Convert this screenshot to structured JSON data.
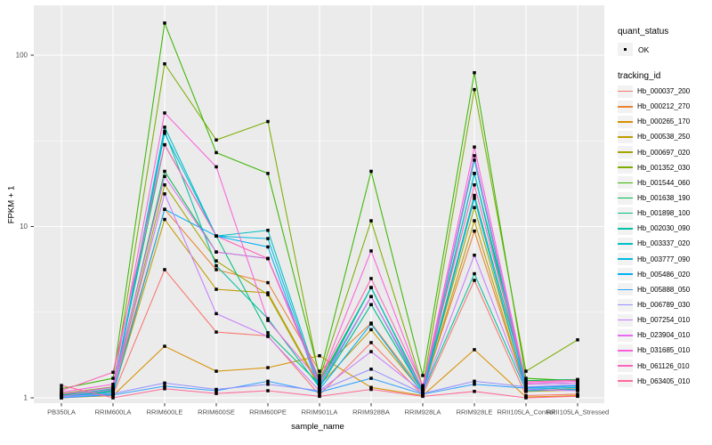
{
  "figure": {
    "background": "#FFFFFF",
    "panel_background": "#EBEBEB",
    "grid_color": "#FFFFFF",
    "tick_label_color": "#4D4D4D",
    "tick_mark_color": "#333333",
    "point_color": "#000000"
  },
  "chart_data": {
    "type": "line",
    "title": "",
    "xlabel": "sample_name",
    "ylabel": "FPKM + 1",
    "y_scale": "log10",
    "y_ticks": [
      1,
      10,
      100
    ],
    "y_minor_ticks": [
      3.162,
      31.62
    ],
    "ylim": [
      1,
      185
    ],
    "grid": true,
    "legend_position": "right",
    "x_categories": [
      "PB350LA",
      "RRIM600LA",
      "RRIM600LE",
      "RRIM600SE",
      "RRIM600PE",
      "RRIM901LA",
      "RRIM928BA",
      "RRIM928LA",
      "RRIM928LE",
      "RRII105LA_Control",
      "RRII105LA_Stressed"
    ],
    "series": [
      {
        "name": "Hb_000037_200",
        "color": "#F8766D",
        "values": [
          1.02,
          1.04,
          5.6,
          2.42,
          2.3,
          1.04,
          2.1,
          1.04,
          4.85,
          1.03,
          1.05
        ]
      },
      {
        "name": "Hb_000212_270",
        "color": "#EA8331",
        "values": [
          1.04,
          1.12,
          12.6,
          5.6,
          4.7,
          1.43,
          2.73,
          1.1,
          9.4,
          1.1,
          1.13
        ]
      },
      {
        "name": "Hb_000265_170",
        "color": "#D89000",
        "values": [
          1.0,
          1.03,
          2.0,
          1.43,
          1.5,
          1.76,
          1.15,
          1.03,
          1.91,
          1.01,
          1.03
        ]
      },
      {
        "name": "Hb_000538_250",
        "color": "#C09B00",
        "values": [
          1.01,
          1.06,
          11.0,
          4.3,
          4.1,
          1.18,
          2.5,
          1.07,
          10.8,
          1.09,
          1.11
        ]
      },
      {
        "name": "Hb_000697_020",
        "color": "#A3A500",
        "values": [
          1.02,
          1.09,
          17.5,
          6.3,
          4.0,
          1.15,
          3.5,
          1.09,
          12.9,
          1.12,
          1.15
        ]
      },
      {
        "name": "Hb_001352_030",
        "color": "#7CAE00",
        "values": [
          1.06,
          1.16,
          89,
          32,
          41,
          1.3,
          10.8,
          1.16,
          63,
          1.43,
          2.18
        ]
      },
      {
        "name": "Hb_001544_060",
        "color": "#39B600",
        "values": [
          1.13,
          1.3,
          154,
          27,
          20.4,
          1.35,
          21,
          1.35,
          79,
          1.3,
          1.26
        ]
      },
      {
        "name": "Hb_001638_190",
        "color": "#00BB4E",
        "values": [
          1.04,
          1.11,
          21,
          7.1,
          6.5,
          1.25,
          4.4,
          1.12,
          20.4,
          1.26,
          1.28
        ]
      },
      {
        "name": "Hb_001898_100",
        "color": "#00BF7D",
        "values": [
          1.03,
          1.13,
          30,
          8.8,
          2.4,
          1.2,
          4.4,
          1.1,
          15.2,
          1.2,
          1.22
        ]
      },
      {
        "name": "Hb_002030_090",
        "color": "#00C1A3",
        "values": [
          1.01,
          1.06,
          36,
          5.9,
          2.9,
          1.15,
          3.5,
          1.08,
          5.3,
          1.1,
          1.12
        ]
      },
      {
        "name": "Hb_003337_020",
        "color": "#00BFC4",
        "values": [
          1.02,
          1.1,
          38,
          8.8,
          9.5,
          1.18,
          4.4,
          1.1,
          24.4,
          1.15,
          1.18
        ]
      },
      {
        "name": "Hb_003777_090",
        "color": "#00BAE0",
        "values": [
          1.01,
          1.08,
          35,
          8.8,
          8.5,
          1.15,
          3.9,
          1.08,
          20.4,
          1.12,
          1.15
        ]
      },
      {
        "name": "Hb_005486_020",
        "color": "#00B0F6",
        "values": [
          1.01,
          1.05,
          12.6,
          8.8,
          7.6,
          1.12,
          2.7,
          1.06,
          14.6,
          1.1,
          1.12
        ]
      },
      {
        "name": "Hb_005888_050",
        "color": "#35A2FF",
        "values": [
          1.0,
          1.04,
          1.17,
          1.1,
          1.25,
          1.08,
          1.3,
          1.05,
          1.2,
          1.14,
          1.17
        ]
      },
      {
        "name": "Hb_006789_030",
        "color": "#9590FF",
        "values": [
          1.01,
          1.06,
          1.22,
          1.12,
          1.2,
          1.1,
          1.47,
          1.06,
          1.25,
          1.16,
          1.19
        ]
      },
      {
        "name": "Hb_007254_010",
        "color": "#C77CFF",
        "values": [
          1.02,
          1.12,
          15.5,
          3.1,
          2.28,
          1.1,
          1.86,
          1.08,
          6.8,
          1.12,
          1.1
        ]
      },
      {
        "name": "Hb_023904_010",
        "color": "#E76BF3",
        "values": [
          1.05,
          1.15,
          19.6,
          7.1,
          6.5,
          1.2,
          3.9,
          1.12,
          25.9,
          1.2,
          1.22
        ]
      },
      {
        "name": "Hb_031685_010",
        "color": "#FA62DB",
        "values": [
          1.08,
          1.2,
          46,
          22.3,
          2.83,
          1.25,
          7.2,
          1.15,
          29.1,
          1.22,
          1.25
        ]
      },
      {
        "name": "Hb_061126_010",
        "color": "#FF62BC",
        "values": [
          1.1,
          1.41,
          30,
          8.8,
          6.5,
          1.28,
          4.97,
          1.18,
          17.5,
          1.24,
          1.27
        ]
      },
      {
        "name": "Hb_063405_010",
        "color": "#FF6A98",
        "values": [
          1.18,
          1.0,
          1.13,
          1.06,
          1.1,
          1.02,
          1.12,
          1.02,
          1.09,
          1.0,
          1.02
        ]
      }
    ],
    "legend_quant": {
      "title": "quant_status",
      "items": [
        {
          "label": "OK",
          "marker": "black-point"
        }
      ]
    },
    "legend_tracking": {
      "title": "tracking_id"
    }
  }
}
